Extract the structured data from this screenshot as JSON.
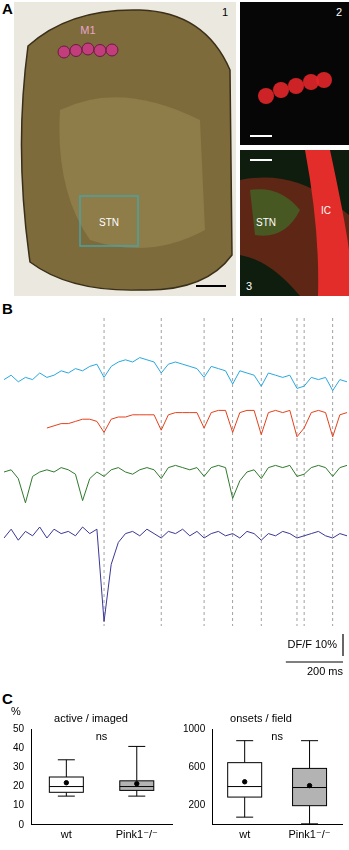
{
  "panel_labels": [
    "A",
    "B",
    "C"
  ],
  "panel_a": {
    "images": [
      {
        "label": "1",
        "annotations": [
          "M1",
          "STN"
        ]
      },
      {
        "label": "2"
      },
      {
        "label": "3",
        "annotations": [
          "STN",
          "IC"
        ]
      }
    ]
  },
  "chart_data": [
    {
      "type": "line",
      "tick_labels": false,
      "grid": false,
      "x": [
        0,
        25,
        50,
        75,
        100,
        125,
        150,
        175,
        200,
        225,
        250,
        275,
        300,
        325,
        350,
        375,
        400,
        425,
        450,
        475,
        500,
        525,
        550,
        575,
        600,
        625,
        650,
        675,
        700,
        725,
        750,
        775,
        800,
        825,
        850,
        875,
        900,
        925,
        950,
        975,
        1000,
        1025,
        1050,
        1075,
        1100,
        1125,
        1150,
        1175,
        1200
      ],
      "onsets": [
        350,
        550,
        700,
        800,
        900,
        1025,
        1050,
        1150
      ],
      "scale_bar": {
        "x": 200,
        "x_label": "200 ms",
        "y": 10,
        "y_label": "DF/F 10%"
      },
      "series": [
        {
          "color": "#2aa7df",
          "values": [
            92,
            94,
            91,
            93,
            92,
            95,
            93,
            94,
            96,
            95,
            97,
            96,
            98,
            99,
            93,
            98,
            100,
            101,
            100,
            102,
            101,
            100,
            95,
            99,
            100,
            99,
            98,
            97,
            93,
            98,
            97,
            96,
            90,
            96,
            95,
            94,
            89,
            95,
            94,
            93,
            94,
            88,
            89,
            93,
            92,
            93,
            87,
            92,
            91
          ]
        },
        {
          "color": "#e5401b",
          "values": [
            null,
            null,
            null,
            null,
            null,
            null,
            70,
            71,
            72,
            72,
            73,
            74,
            74,
            73,
            68,
            74,
            75,
            75,
            76,
            76,
            76,
            76,
            69,
            76,
            77,
            77,
            77,
            77,
            70,
            77,
            78,
            78,
            68,
            77,
            78,
            78,
            67,
            77,
            78,
            77,
            78,
            66,
            70,
            77,
            78,
            77,
            66,
            76,
            77
          ]
        },
        {
          "color": "#2f7a2c",
          "values": [
            50,
            51,
            47,
            36,
            48,
            50,
            51,
            50,
            52,
            51,
            49,
            37,
            47,
            50,
            48,
            51,
            52,
            50,
            49,
            51,
            52,
            51,
            47,
            52,
            53,
            52,
            51,
            52,
            48,
            52,
            53,
            52,
            38,
            46,
            50,
            51,
            47,
            52,
            53,
            52,
            53,
            48,
            49,
            52,
            53,
            52,
            48,
            52,
            53
          ]
        },
        {
          "color": "#3b3796",
          "values": [
            20,
            24,
            19,
            23,
            21,
            25,
            20,
            24,
            22,
            23,
            21,
            25,
            22,
            24,
            -18,
            8,
            18,
            22,
            23,
            21,
            24,
            22,
            20,
            23,
            22,
            24,
            21,
            23,
            20,
            22,
            23,
            21,
            22,
            20,
            23,
            22,
            19,
            22,
            21,
            23,
            22,
            20,
            21,
            22,
            23,
            21,
            20,
            22,
            21
          ]
        }
      ]
    },
    {
      "type": "box",
      "title": "active / imaged",
      "y_label": "%",
      "annotation": "ns",
      "grid": false,
      "categories": [
        "wt",
        "Pink1⁻/⁻"
      ],
      "colors": [
        "#ffffff",
        "#b3b3b3"
      ],
      "min": [
        15,
        15
      ],
      "q1": [
        17,
        18
      ],
      "median": [
        20,
        20
      ],
      "q3": [
        25,
        23
      ],
      "max": [
        34,
        41
      ],
      "mean": [
        22,
        21.5
      ],
      "ylim": [
        0,
        50
      ],
      "yticks": [
        0,
        10,
        20,
        30,
        40,
        50
      ]
    },
    {
      "type": "box",
      "title": "onsets / field",
      "annotation": "ns",
      "grid": false,
      "categories": [
        "wt",
        "Pink1⁻/⁻"
      ],
      "colors": [
        "#ffffff",
        "#b3b3b3"
      ],
      "min": [
        80,
        10
      ],
      "q1": [
        290,
        200
      ],
      "median": [
        400,
        390
      ],
      "q3": [
        650,
        590
      ],
      "max": [
        880,
        880
      ],
      "mean": [
        450,
        410
      ],
      "ylim": [
        0,
        1000
      ],
      "yticks": [
        200,
        600,
        1000
      ]
    }
  ]
}
